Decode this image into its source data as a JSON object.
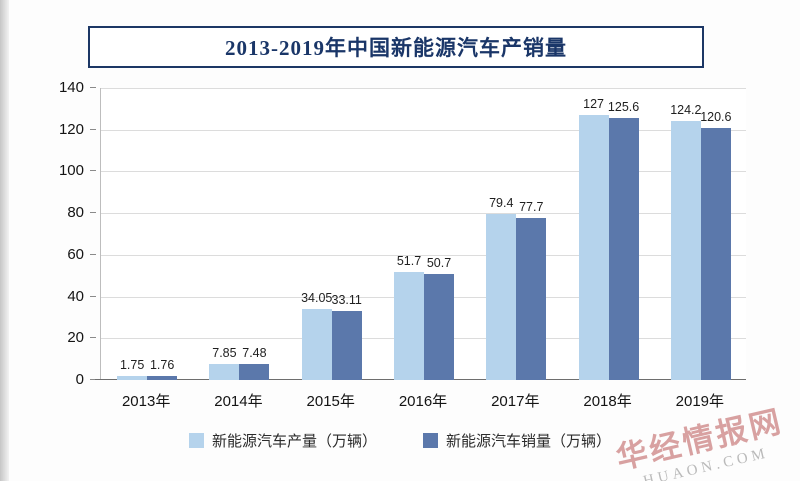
{
  "watermark": {
    "line1": "华经情报网",
    "line2": "HUAON.COM"
  },
  "colors": {
    "production": "#b5d3ec",
    "sales": "#5b78ab",
    "title": "#1a3668",
    "grid": "#dcdcdc",
    "axis": "#6e6e6e"
  },
  "chart_data": {
    "type": "bar",
    "title": "2013-2019年中国新能源汽车产销量",
    "categories": [
      "2013年",
      "2014年",
      "2015年",
      "2016年",
      "2017年",
      "2018年",
      "2019年"
    ],
    "series": [
      {
        "name": "新能源汽车产量（万辆）",
        "color": "#b5d3ec",
        "values": [
          1.75,
          7.85,
          34.05,
          51.7,
          79.4,
          127,
          124.2
        ]
      },
      {
        "name": "新能源汽车销量（万辆）",
        "color": "#5b78ab",
        "values": [
          1.76,
          7.48,
          33.11,
          50.7,
          77.7,
          125.6,
          120.6
        ]
      }
    ],
    "xlabel": "",
    "ylabel": "",
    "ylim": [
      0,
      140
    ],
    "yticks": [
      0,
      20,
      40,
      60,
      80,
      100,
      120,
      140
    ],
    "grid": true,
    "legend_position": "bottom"
  }
}
